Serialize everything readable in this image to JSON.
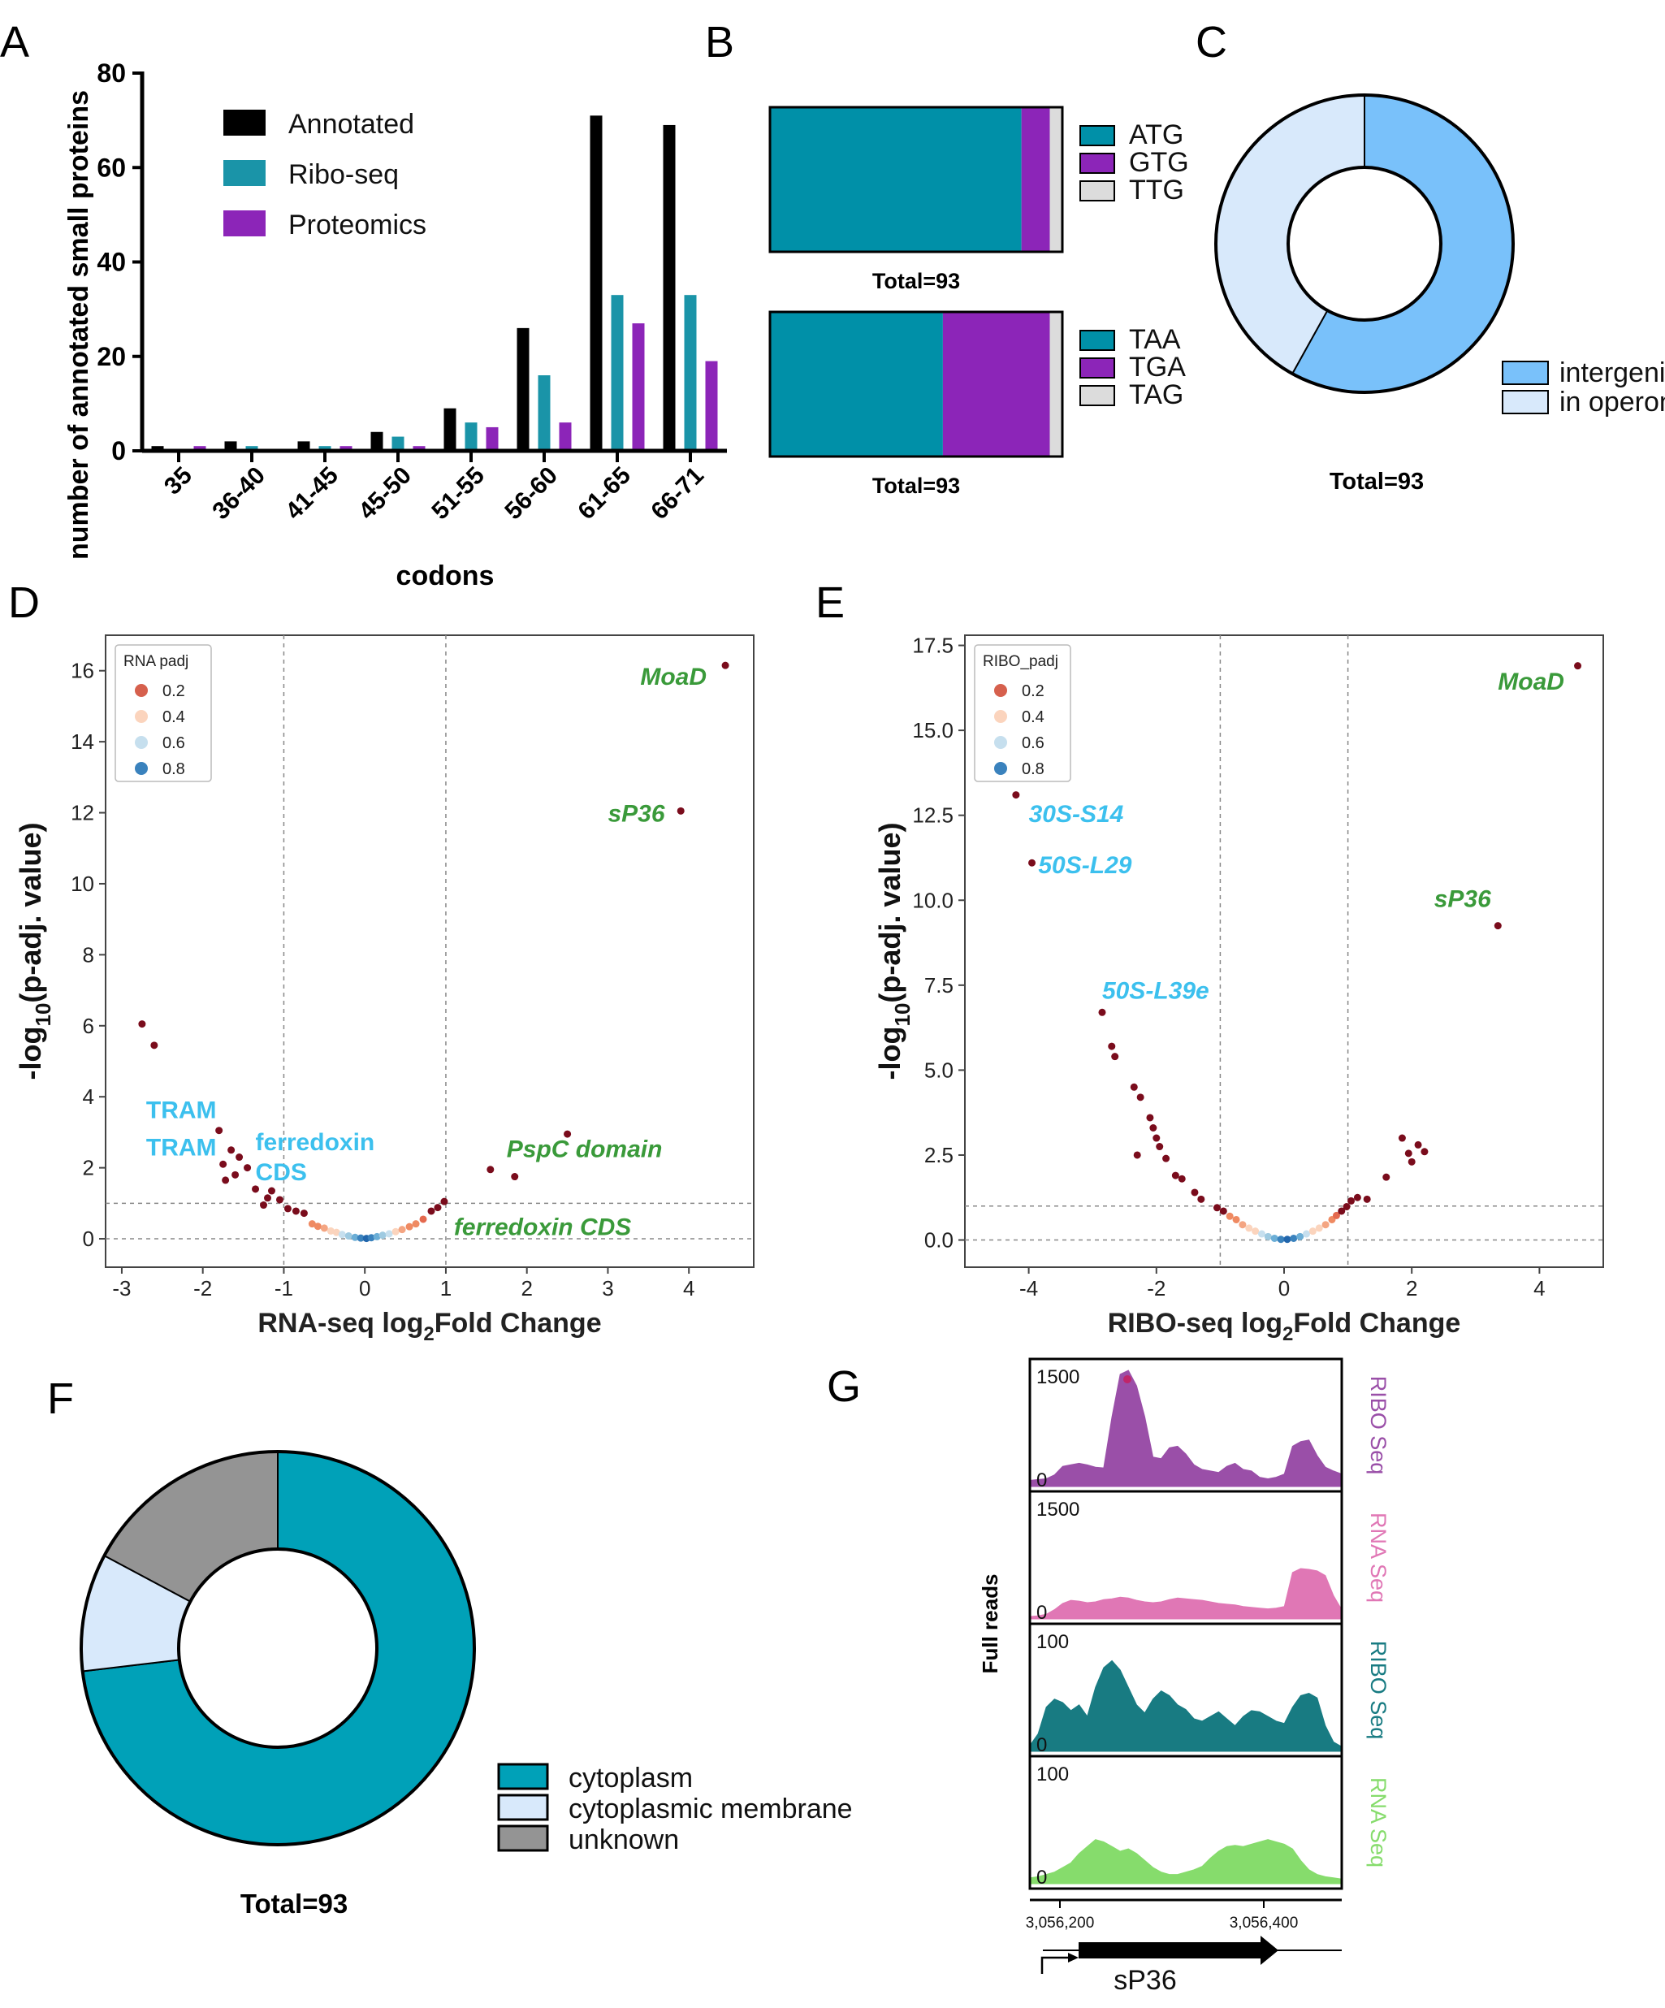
{
  "panels": {
    "A": "A",
    "B": "B",
    "C": "C",
    "D": "D",
    "E": "E",
    "F": "F",
    "G": "G"
  },
  "chart_data": [
    {
      "id": "A",
      "type": "bar",
      "title": "",
      "xlabel": "codons",
      "ylabel": "number of annotated small proteins",
      "ylim": [
        0,
        80
      ],
      "yticks": [
        "0",
        "20",
        "40",
        "60",
        "80"
      ],
      "categories": [
        "35",
        "36-40",
        "41-45",
        "45-50",
        "51-55",
        "56-60",
        "61-65",
        "66-71"
      ],
      "series": [
        {
          "name": "Annotated",
          "color": "#000000",
          "values": [
            1,
            2,
            2,
            4,
            9,
            26,
            71,
            69
          ]
        },
        {
          "name": "Ribo-seq",
          "color": "#1a94a8",
          "values": [
            0,
            1,
            1,
            3,
            6,
            16,
            33,
            33
          ]
        },
        {
          "name": "Proteomics",
          "color": "#8c25b8",
          "values": [
            1,
            0,
            1,
            1,
            5,
            6,
            27,
            19
          ]
        }
      ]
    },
    {
      "id": "B",
      "type": "bar",
      "subtype": "stacked-horizontal",
      "bars": [
        {
          "total_label": "Total=93",
          "segments": [
            {
              "name": "ATG",
              "value": 80,
              "color": "#0090a8"
            },
            {
              "name": "GTG",
              "value": 9,
              "color": "#8c25b8"
            },
            {
              "name": "TTG",
              "value": 4,
              "color": "#dcdcdc"
            }
          ]
        },
        {
          "total_label": "Total=93",
          "segments": [
            {
              "name": "TAA",
              "value": 55,
              "color": "#0090a8"
            },
            {
              "name": "TGA",
              "value": 34,
              "color": "#8c25b8"
            },
            {
              "name": "TAG",
              "value": 4,
              "color": "#dcdcdc"
            }
          ]
        }
      ]
    },
    {
      "id": "C",
      "type": "pie",
      "subtype": "donut",
      "total_label": "Total=93",
      "slices": [
        {
          "name": "intergenic",
          "value": 54,
          "color": "#79c1fa"
        },
        {
          "name": "in operon",
          "value": 39,
          "color": "#d8e9fb"
        }
      ]
    },
    {
      "id": "D",
      "type": "scatter",
      "xlabel": "RNA-seq log",
      "xlabel_sub": "2",
      "xlabel_tail": "Fold Change",
      "ylabel_pre": "-log",
      "ylabel_sub": "10",
      "ylabel_tail": "(p-adj. value)",
      "xlim": [
        -3.2,
        4.8
      ],
      "ylim": [
        -0.8,
        17.0
      ],
      "xticks": [
        -3,
        -2,
        -1,
        0,
        1,
        2,
        3,
        4
      ],
      "xtick_labels": [
        "-3",
        "-2",
        "-1",
        "0",
        "1",
        "2",
        "3",
        "4"
      ],
      "yticks": [
        0,
        2,
        4,
        6,
        8,
        10,
        12,
        14,
        16
      ],
      "ytick_labels": [
        "0",
        "2",
        "4",
        "6",
        "8",
        "10",
        "12",
        "14",
        "16"
      ],
      "vlines": [
        -1,
        1
      ],
      "hlines": [
        0,
        1
      ],
      "legend_title": "RNA  padj",
      "legend": [
        {
          "label": "0.2",
          "color": "#d6604d"
        },
        {
          "label": "0.4",
          "color": "#fbd4bd"
        },
        {
          "label": "0.6",
          "color": "#c6dfee"
        },
        {
          "label": "0.8",
          "color": "#3a82bd"
        }
      ],
      "points_sig": [
        [
          4.45,
          16.15
        ],
        [
          3.9,
          12.05
        ],
        [
          -2.75,
          6.05
        ],
        [
          -2.6,
          5.45
        ],
        [
          -1.8,
          3.05
        ],
        [
          -1.75,
          2.1
        ],
        [
          -1.65,
          2.5
        ],
        [
          -1.55,
          2.3
        ],
        [
          -1.45,
          2.0
        ],
        [
          -1.72,
          1.65
        ],
        [
          -1.6,
          1.8
        ],
        [
          -1.35,
          1.4
        ],
        [
          -1.2,
          1.15
        ],
        [
          -1.15,
          1.35
        ],
        [
          -1.05,
          1.1
        ],
        [
          -0.95,
          0.85
        ],
        [
          -0.85,
          0.78
        ],
        [
          -0.75,
          0.72
        ],
        [
          -1.25,
          0.95
        ],
        [
          2.5,
          2.95
        ],
        [
          1.55,
          1.95
        ],
        [
          1.85,
          1.75
        ],
        [
          0.98,
          1.05
        ],
        [
          0.9,
          0.88
        ],
        [
          0.82,
          0.78
        ]
      ],
      "points_ns": [
        [
          -0.65,
          0.42,
          "#ef8a62"
        ],
        [
          -0.58,
          0.35,
          "#ef8a62"
        ],
        [
          -0.5,
          0.3,
          "#f4a582"
        ],
        [
          -0.42,
          0.22,
          "#fbd4bd"
        ],
        [
          -0.35,
          0.18,
          "#fbd4bd"
        ],
        [
          -0.28,
          0.12,
          "#c6dfee"
        ],
        [
          -0.2,
          0.08,
          "#9ecae1"
        ],
        [
          -0.12,
          0.04,
          "#6baed6"
        ],
        [
          -0.05,
          0.02,
          "#3a82bd"
        ],
        [
          0.02,
          0.01,
          "#2166ac"
        ],
        [
          0.08,
          0.03,
          "#3a82bd"
        ],
        [
          0.15,
          0.06,
          "#6baed6"
        ],
        [
          0.22,
          0.1,
          "#9ecae1"
        ],
        [
          0.3,
          0.14,
          "#c6dfee"
        ],
        [
          0.38,
          0.2,
          "#fbd4bd"
        ],
        [
          0.46,
          0.26,
          "#f4a582"
        ],
        [
          0.55,
          0.34,
          "#ef8a62"
        ],
        [
          0.63,
          0.42,
          "#ef8a62"
        ],
        [
          0.72,
          0.55,
          "#e4694e"
        ]
      ],
      "annotations": [
        {
          "text": "MoaD",
          "x": 3.4,
          "y": 15.6,
          "style": "green"
        },
        {
          "text": "sP36",
          "x": 3.0,
          "y": 11.75,
          "style": "green"
        },
        {
          "text": "PspC domain",
          "x": 1.75,
          "y": 2.3,
          "style": "green"
        },
        {
          "text": "ferredoxin CDS",
          "x": 1.1,
          "y": 0.1,
          "style": "green"
        },
        {
          "text": "TRAM",
          "x": -2.7,
          "y": 3.4,
          "style": "blue"
        },
        {
          "text": "TRAM",
          "x": -2.7,
          "y": 2.35,
          "style": "blue"
        },
        {
          "text": "ferredoxin",
          "x": -1.35,
          "y": 2.5,
          "style": "blue"
        },
        {
          "text": "CDS",
          "x": -1.35,
          "y": 1.65,
          "style": "blue"
        }
      ]
    },
    {
      "id": "E",
      "type": "scatter",
      "xlabel": "RIBO-seq log",
      "xlabel_sub": "2",
      "xlabel_tail": "Fold Change",
      "ylabel_pre": "-log",
      "ylabel_sub": "10",
      "ylabel_tail": "(p-adj. value)",
      "xlim": [
        -5.0,
        5.0
      ],
      "ylim": [
        -0.8,
        17.8
      ],
      "xticks": [
        -4,
        -2,
        0,
        2,
        4
      ],
      "xtick_labels": [
        "-4",
        "-2",
        "0",
        "2",
        "4"
      ],
      "yticks": [
        0,
        2.5,
        5,
        7.5,
        10,
        12.5,
        15,
        17.5
      ],
      "ytick_labels": [
        "0.0",
        "2.5",
        "5.0",
        "7.5",
        "10.0",
        "12.5",
        "15.0",
        "17.5"
      ],
      "vlines": [
        -1,
        1
      ],
      "hlines": [
        0,
        1
      ],
      "legend_title": "RIBO_padj",
      "legend": [
        {
          "label": "0.2",
          "color": "#d6604d"
        },
        {
          "label": "0.4",
          "color": "#fbd4bd"
        },
        {
          "label": "0.6",
          "color": "#c6dfee"
        },
        {
          "label": "0.8",
          "color": "#3a82bd"
        }
      ],
      "points_sig": [
        [
          4.6,
          16.9
        ],
        [
          3.35,
          9.25
        ],
        [
          -4.2,
          13.1
        ],
        [
          -3.95,
          11.1
        ],
        [
          -2.85,
          6.7
        ],
        [
          -2.7,
          5.7
        ],
        [
          -2.65,
          5.4
        ],
        [
          -2.35,
          4.5
        ],
        [
          -2.25,
          4.2
        ],
        [
          -2.1,
          3.6
        ],
        [
          -2.05,
          3.3
        ],
        [
          -2.0,
          3.0
        ],
        [
          -1.95,
          2.75
        ],
        [
          -1.85,
          2.4
        ],
        [
          -2.3,
          2.5
        ],
        [
          -1.7,
          1.9
        ],
        [
          -1.6,
          1.8
        ],
        [
          -1.4,
          1.4
        ],
        [
          -1.3,
          1.2
        ],
        [
          -1.05,
          0.95
        ],
        [
          -0.95,
          0.85
        ],
        [
          1.05,
          1.15
        ],
        [
          1.15,
          1.25
        ],
        [
          1.3,
          1.2
        ],
        [
          1.6,
          1.85
        ],
        [
          1.85,
          3.0
        ],
        [
          2.0,
          2.3
        ],
        [
          2.1,
          2.8
        ],
        [
          2.2,
          2.6
        ],
        [
          1.95,
          2.55
        ],
        [
          0.98,
          0.98
        ],
        [
          0.9,
          0.85
        ]
      ],
      "points_ns": [
        [
          -0.85,
          0.7,
          "#ef8a62"
        ],
        [
          -0.75,
          0.6,
          "#ef8a62"
        ],
        [
          -0.65,
          0.45,
          "#f4a582"
        ],
        [
          -0.55,
          0.35,
          "#fbd4bd"
        ],
        [
          -0.45,
          0.26,
          "#fbd4bd"
        ],
        [
          -0.35,
          0.18,
          "#c6dfee"
        ],
        [
          -0.25,
          0.1,
          "#9ecae1"
        ],
        [
          -0.15,
          0.05,
          "#6baed6"
        ],
        [
          -0.05,
          0.02,
          "#3a82bd"
        ],
        [
          0.05,
          0.02,
          "#2166ac"
        ],
        [
          0.15,
          0.05,
          "#3a82bd"
        ],
        [
          0.25,
          0.1,
          "#6baed6"
        ],
        [
          0.35,
          0.18,
          "#c6dfee"
        ],
        [
          0.45,
          0.26,
          "#fbd4bd"
        ],
        [
          0.55,
          0.35,
          "#fbd4bd"
        ],
        [
          0.65,
          0.45,
          "#f4a582"
        ],
        [
          0.75,
          0.6,
          "#ef8a62"
        ],
        [
          0.82,
          0.72,
          "#e4694e"
        ]
      ],
      "annotations": [
        {
          "text": "MoaD",
          "x": 3.35,
          "y": 16.2,
          "style": "green"
        },
        {
          "text": "sP36",
          "x": 2.35,
          "y": 9.8,
          "style": "green"
        },
        {
          "text": "30S-S14",
          "x": -4.0,
          "y": 12.3,
          "style": "bluei"
        },
        {
          "text": "50S-L29",
          "x": -3.85,
          "y": 10.8,
          "style": "bluei"
        },
        {
          "text": "50S-L39e",
          "x": -2.85,
          "y": 7.1,
          "style": "bluei"
        }
      ]
    },
    {
      "id": "F",
      "type": "pie",
      "subtype": "donut",
      "total_label": "Total=93",
      "slices": [
        {
          "name": "cytoplasm",
          "value": 68,
          "color": "#00a1b8"
        },
        {
          "name": "cytoplasmic membrane",
          "value": 9,
          "color": "#d8e9fb"
        },
        {
          "name": "unknown",
          "value": 16,
          "color": "#949494"
        }
      ]
    },
    {
      "id": "G",
      "type": "area",
      "ylabel": "Full reads",
      "tracks": [
        {
          "name": "RIBO Seq",
          "color": "#9a4fa8",
          "ymax_label": "1500",
          "ymin_label": "0",
          "max": 1500,
          "values": [
            80,
            90,
            100,
            150,
            260,
            280,
            300,
            280,
            250,
            240,
            900,
            1450,
            1500,
            1300,
            900,
            380,
            360,
            500,
            520,
            420,
            280,
            220,
            200,
            180,
            260,
            300,
            220,
            200,
            120,
            100,
            120,
            160,
            520,
            580,
            600,
            400,
            250,
            200,
            160
          ]
        },
        {
          "name": "RNA Seq",
          "color": "#e077b5",
          "ymax_label": "1500",
          "ymin_label": "0",
          "max": 1500,
          "values": [
            30,
            40,
            60,
            120,
            200,
            240,
            230,
            210,
            220,
            250,
            260,
            280,
            270,
            240,
            220,
            210,
            220,
            250,
            270,
            260,
            250,
            240,
            220,
            200,
            190,
            180,
            160,
            150,
            140,
            130,
            140,
            160,
            600,
            650,
            640,
            620,
            560,
            300,
            120
          ]
        },
        {
          "name": "RIBO Seq",
          "color": "#187b82",
          "ymax_label": "100",
          "ymin_label": "0",
          "max": 100,
          "values": [
            5,
            15,
            38,
            45,
            42,
            35,
            40,
            30,
            55,
            72,
            78,
            70,
            55,
            40,
            33,
            45,
            52,
            48,
            40,
            36,
            28,
            26,
            30,
            34,
            28,
            22,
            30,
            35,
            34,
            30,
            26,
            24,
            38,
            48,
            50,
            46,
            22,
            8,
            4
          ]
        },
        {
          "name": "RNA Seq",
          "color": "#86dc6c",
          "ymax_label": "100",
          "ymin_label": "0",
          "max": 100,
          "values": [
            5,
            6,
            8,
            10,
            14,
            18,
            26,
            32,
            38,
            36,
            32,
            28,
            30,
            26,
            20,
            14,
            10,
            8,
            8,
            10,
            12,
            15,
            22,
            28,
            32,
            33,
            32,
            34,
            36,
            38,
            36,
            34,
            30,
            20,
            12,
            8,
            6,
            5,
            4
          ]
        }
      ],
      "x_tick_labels": [
        "3,056,200",
        "3,056,400"
      ],
      "gene_label": "sP36"
    }
  ]
}
